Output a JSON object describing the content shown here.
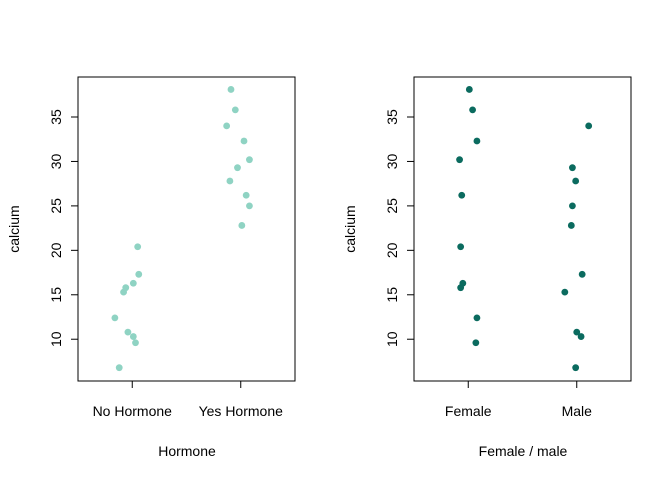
{
  "chart_data": [
    {
      "type": "scatter",
      "title": "",
      "xlabel": "Hormone",
      "ylabel": "calcium",
      "categories": [
        "No Hormone",
        "Yes Hormone"
      ],
      "y_ticks": [
        10,
        15,
        20,
        25,
        30,
        35
      ],
      "ylim": [
        5.3,
        39.5
      ],
      "grid": false,
      "point_color": "#8fd3c3",
      "points": [
        {
          "category": "No Hormone",
          "jitter": -0.12,
          "y": 6.8
        },
        {
          "category": "No Hormone",
          "jitter": 0.03,
          "y": 9.6
        },
        {
          "category": "No Hormone",
          "jitter": 0.01,
          "y": 10.3
        },
        {
          "category": "No Hormone",
          "jitter": -0.04,
          "y": 10.8
        },
        {
          "category": "No Hormone",
          "jitter": -0.16,
          "y": 12.4
        },
        {
          "category": "No Hormone",
          "jitter": -0.08,
          "y": 15.3
        },
        {
          "category": "No Hormone",
          "jitter": -0.06,
          "y": 15.8
        },
        {
          "category": "No Hormone",
          "jitter": 0.01,
          "y": 16.3
        },
        {
          "category": "No Hormone",
          "jitter": 0.06,
          "y": 17.3
        },
        {
          "category": "No Hormone",
          "jitter": 0.05,
          "y": 20.4
        },
        {
          "category": "Yes Hormone",
          "jitter": 0.01,
          "y": 22.8
        },
        {
          "category": "Yes Hormone",
          "jitter": 0.08,
          "y": 25.0
        },
        {
          "category": "Yes Hormone",
          "jitter": 0.05,
          "y": 26.2
        },
        {
          "category": "Yes Hormone",
          "jitter": -0.1,
          "y": 27.8
        },
        {
          "category": "Yes Hormone",
          "jitter": -0.03,
          "y": 29.3
        },
        {
          "category": "Yes Hormone",
          "jitter": 0.08,
          "y": 30.2
        },
        {
          "category": "Yes Hormone",
          "jitter": 0.03,
          "y": 32.3
        },
        {
          "category": "Yes Hormone",
          "jitter": -0.13,
          "y": 34.0
        },
        {
          "category": "Yes Hormone",
          "jitter": -0.05,
          "y": 35.8
        },
        {
          "category": "Yes Hormone",
          "jitter": -0.09,
          "y": 38.1
        }
      ]
    },
    {
      "type": "scatter",
      "title": "",
      "xlabel": "Female / male",
      "ylabel": "calcium",
      "categories": [
        "Female",
        "Male"
      ],
      "y_ticks": [
        10,
        15,
        20,
        25,
        30,
        35
      ],
      "ylim": [
        5.3,
        39.5
      ],
      "grid": false,
      "point_color": "#0b6b5f",
      "points": [
        {
          "category": "Female",
          "jitter": 0.07,
          "y": 9.6
        },
        {
          "category": "Female",
          "jitter": 0.08,
          "y": 12.4
        },
        {
          "category": "Female",
          "jitter": -0.07,
          "y": 15.8
        },
        {
          "category": "Female",
          "jitter": -0.05,
          "y": 16.3
        },
        {
          "category": "Female",
          "jitter": -0.07,
          "y": 20.4
        },
        {
          "category": "Female",
          "jitter": -0.06,
          "y": 26.2
        },
        {
          "category": "Female",
          "jitter": -0.08,
          "y": 30.2
        },
        {
          "category": "Female",
          "jitter": 0.08,
          "y": 32.3
        },
        {
          "category": "Female",
          "jitter": 0.04,
          "y": 35.8
        },
        {
          "category": "Female",
          "jitter": 0.01,
          "y": 38.1
        },
        {
          "category": "Male",
          "jitter": -0.01,
          "y": 6.8
        },
        {
          "category": "Male",
          "jitter": 0.04,
          "y": 10.3
        },
        {
          "category": "Male",
          "jitter": 0.0,
          "y": 10.8
        },
        {
          "category": "Male",
          "jitter": -0.11,
          "y": 15.3
        },
        {
          "category": "Male",
          "jitter": 0.05,
          "y": 17.3
        },
        {
          "category": "Male",
          "jitter": -0.05,
          "y": 22.8
        },
        {
          "category": "Male",
          "jitter": -0.04,
          "y": 25.0
        },
        {
          "category": "Male",
          "jitter": -0.01,
          "y": 27.8
        },
        {
          "category": "Male",
          "jitter": -0.04,
          "y": 29.3
        },
        {
          "category": "Male",
          "jitter": 0.11,
          "y": 34.0
        }
      ]
    }
  ]
}
